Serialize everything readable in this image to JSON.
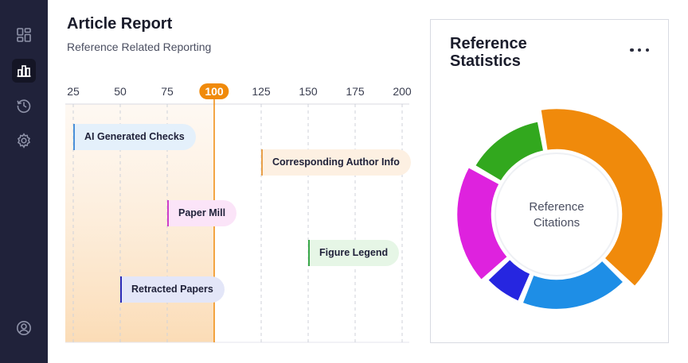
{
  "sidebar": {
    "items": [
      {
        "icon": "dashboard-icon",
        "active": false
      },
      {
        "icon": "bar-chart-icon",
        "active": true
      },
      {
        "icon": "history-icon",
        "active": false
      },
      {
        "icon": "settings-icon",
        "active": false
      }
    ],
    "profile_icon": "user-icon"
  },
  "header": {
    "title": "Article Report",
    "subtitle": "Reference Related Reporting"
  },
  "timeline": {
    "ticks": [
      "25",
      "50",
      "75",
      "100",
      "125",
      "150",
      "175",
      "200"
    ],
    "tick_values": [
      25,
      50,
      75,
      100,
      125,
      150,
      175,
      200
    ],
    "highlight": 100,
    "highlight_color": "#f08a0b",
    "items": [
      {
        "label": "AI Generated Checks",
        "value": 25,
        "color": "#4a90d9",
        "bg": "#e4f0fb"
      },
      {
        "label": "Corresponding Author Info",
        "value": 125,
        "color": "#e8a04a",
        "bg": "#fdf0e2"
      },
      {
        "label": "Paper Mill",
        "value": 75,
        "color": "#cf3fc8",
        "bg": "#fbe4f8"
      },
      {
        "label": "Figure Legend",
        "value": 150,
        "color": "#3aa84a",
        "bg": "#e6f6e6"
      },
      {
        "label": "Retracted Papers",
        "value": 50,
        "color": "#2b2bb8",
        "bg": "#e3e6f8"
      }
    ]
  },
  "stats_card": {
    "title": "Reference Statistics",
    "more_icon": "more-horizontal-icon",
    "center_label": "Reference Citations",
    "segments": [
      {
        "color": "#f08a0b",
        "share": 0.4
      },
      {
        "color": "#1e8ee6",
        "share": 0.19
      },
      {
        "color": "#2626e0",
        "share": 0.07
      },
      {
        "color": "#de22de",
        "share": 0.2
      },
      {
        "color": "#32a81e",
        "share": 0.14
      }
    ]
  }
}
